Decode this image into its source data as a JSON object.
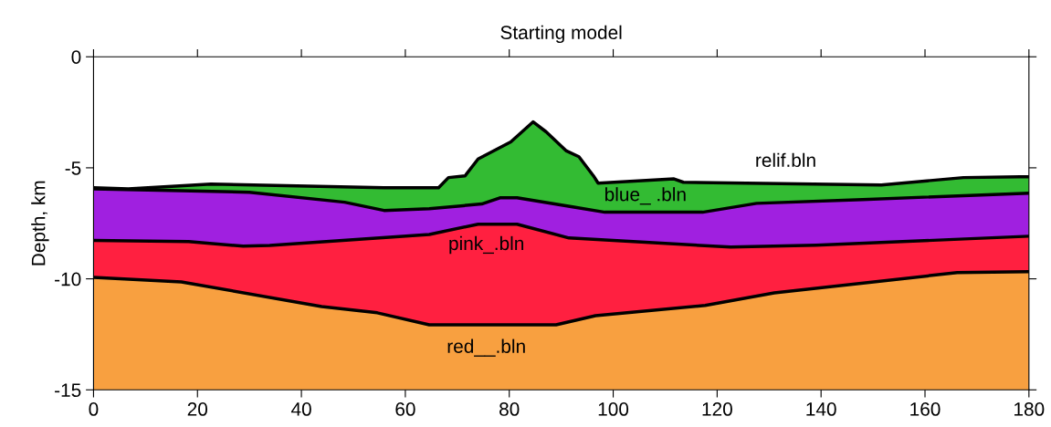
{
  "chart_data": {
    "type": "line",
    "title": "Starting model",
    "ylabel": "Depth, km",
    "xlim": [
      0,
      180
    ],
    "xticks": [
      0,
      20,
      40,
      60,
      80,
      100,
      120,
      140,
      160,
      180
    ],
    "ylim": [
      -15,
      0
    ],
    "yticks": [
      {
        "value": 0,
        "label": "0"
      },
      {
        "value": -5,
        "label": "-5"
      },
      {
        "value": -10,
        "label": "-10"
      },
      {
        "value": -15,
        "label": "-15"
      }
    ],
    "grid": false,
    "legend": false,
    "marker": "none",
    "line_style": "solid",
    "series": [
      {
        "name": "relif.bln",
        "color": "#000000",
        "x": [
          0,
          6.7,
          22.6,
          55.9,
          66.4,
          68.3,
          71.5,
          74,
          80.3,
          84.6,
          87.1,
          91,
          93.4,
          96.2,
          97.1,
          111.7,
          113.5,
          151.6,
          167.4,
          178.3,
          180
        ],
        "values": [
          -5.9,
          -5.95,
          -5.73,
          -5.9,
          -5.9,
          -5.44,
          -5.36,
          -4.6,
          -3.83,
          -2.93,
          -3.38,
          -4.24,
          -4.5,
          -5.36,
          -5.69,
          -5.5,
          -5.65,
          -5.77,
          -5.44,
          -5.4,
          -5.4
        ]
      },
      {
        "name": "blue_ .bln",
        "color": "#000000",
        "x": [
          0,
          30,
          48.3,
          55.9,
          64.6,
          74.7,
          78.2,
          81.5,
          92.2,
          98.4,
          117.2,
          127.6,
          148,
          180
        ],
        "values": [
          -5.95,
          -6.1,
          -6.55,
          -6.92,
          -6.84,
          -6.63,
          -6.35,
          -6.35,
          -6.76,
          -7.0,
          -7.0,
          -6.6,
          -6.43,
          -6.14
        ]
      },
      {
        "name": "pink_.bln",
        "color": "#000000",
        "x": [
          0,
          18.3,
          28.8,
          33.9,
          64.6,
          74,
          81.5,
          91.5,
          122.6,
          139,
          180
        ],
        "values": [
          -8.27,
          -8.32,
          -8.53,
          -8.5,
          -8.0,
          -7.54,
          -7.54,
          -8.16,
          -8.57,
          -8.49,
          -8.08
        ]
      },
      {
        "name": "red__.bln",
        "color": "#000000",
        "x": [
          0,
          16.9,
          43.9,
          54.6,
          64.6,
          89,
          96.6,
          117.7,
          131,
          166.2,
          180
        ],
        "values": [
          -9.93,
          -10.14,
          -11.25,
          -11.53,
          -12.07,
          -12.07,
          -11.66,
          -11.2,
          -10.63,
          -9.72,
          -9.68
        ]
      }
    ]
  }
}
